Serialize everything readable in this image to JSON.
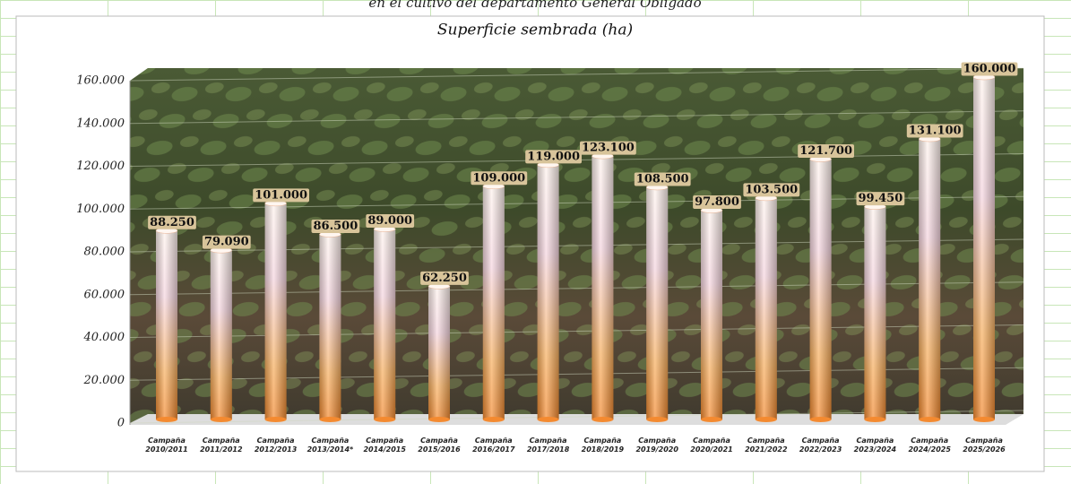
{
  "header": "en el cultivo del departamento General Obligado",
  "chart_data": {
    "type": "bar",
    "title": "Superficie sembrada (ha)",
    "categories": [
      "Campaña 2010/2011",
      "Campaña 2011/2012",
      "Campaña 2012/2013",
      "Campaña 2013/2014*",
      "Campaña 2014/2015",
      "Campaña 2015/2016",
      "Campaña 2016/2017",
      "Campaña 2017/2018",
      "Campaña 2018/2019",
      "Campaña 2019/2020",
      "Campaña 2020/2021",
      "Campaña 2021/2022",
      "Campaña 2022/2023",
      "Campaña 2023/2024",
      "Campaña 2024/2025",
      "Campaña 2025/2026"
    ],
    "values": [
      88250,
      79090,
      101000,
      86500,
      89000,
      62250,
      109000,
      119000,
      123100,
      108500,
      97800,
      103500,
      121700,
      99450,
      131100,
      160000
    ],
    "value_labels": [
      "88.250",
      "79.090",
      "101.000",
      "86.500",
      "89.000",
      "62.250",
      "109.000",
      "119.000",
      "123.100",
      "108.500",
      "97.800",
      "103.500",
      "121.700",
      "99.450",
      "131.100",
      "160.000"
    ],
    "color": "#f7a24a",
    "ylim": [
      0,
      160000
    ],
    "yticks": [
      0,
      {
        "value": 20000,
        "label": "20.000"
      },
      {
        "value": 40000,
        "label": "40.000"
      },
      {
        "value": 60000,
        "label": "60.000"
      },
      {
        "value": 80000,
        "label": "80.000"
      },
      {
        "value": 100000,
        "label": "100.000"
      },
      {
        "value": 120000,
        "label": "120.000"
      },
      {
        "value": 140000,
        "label": "140.000"
      },
      {
        "value": 160000,
        "label": "160.000"
      }
    ],
    "grid": true
  }
}
